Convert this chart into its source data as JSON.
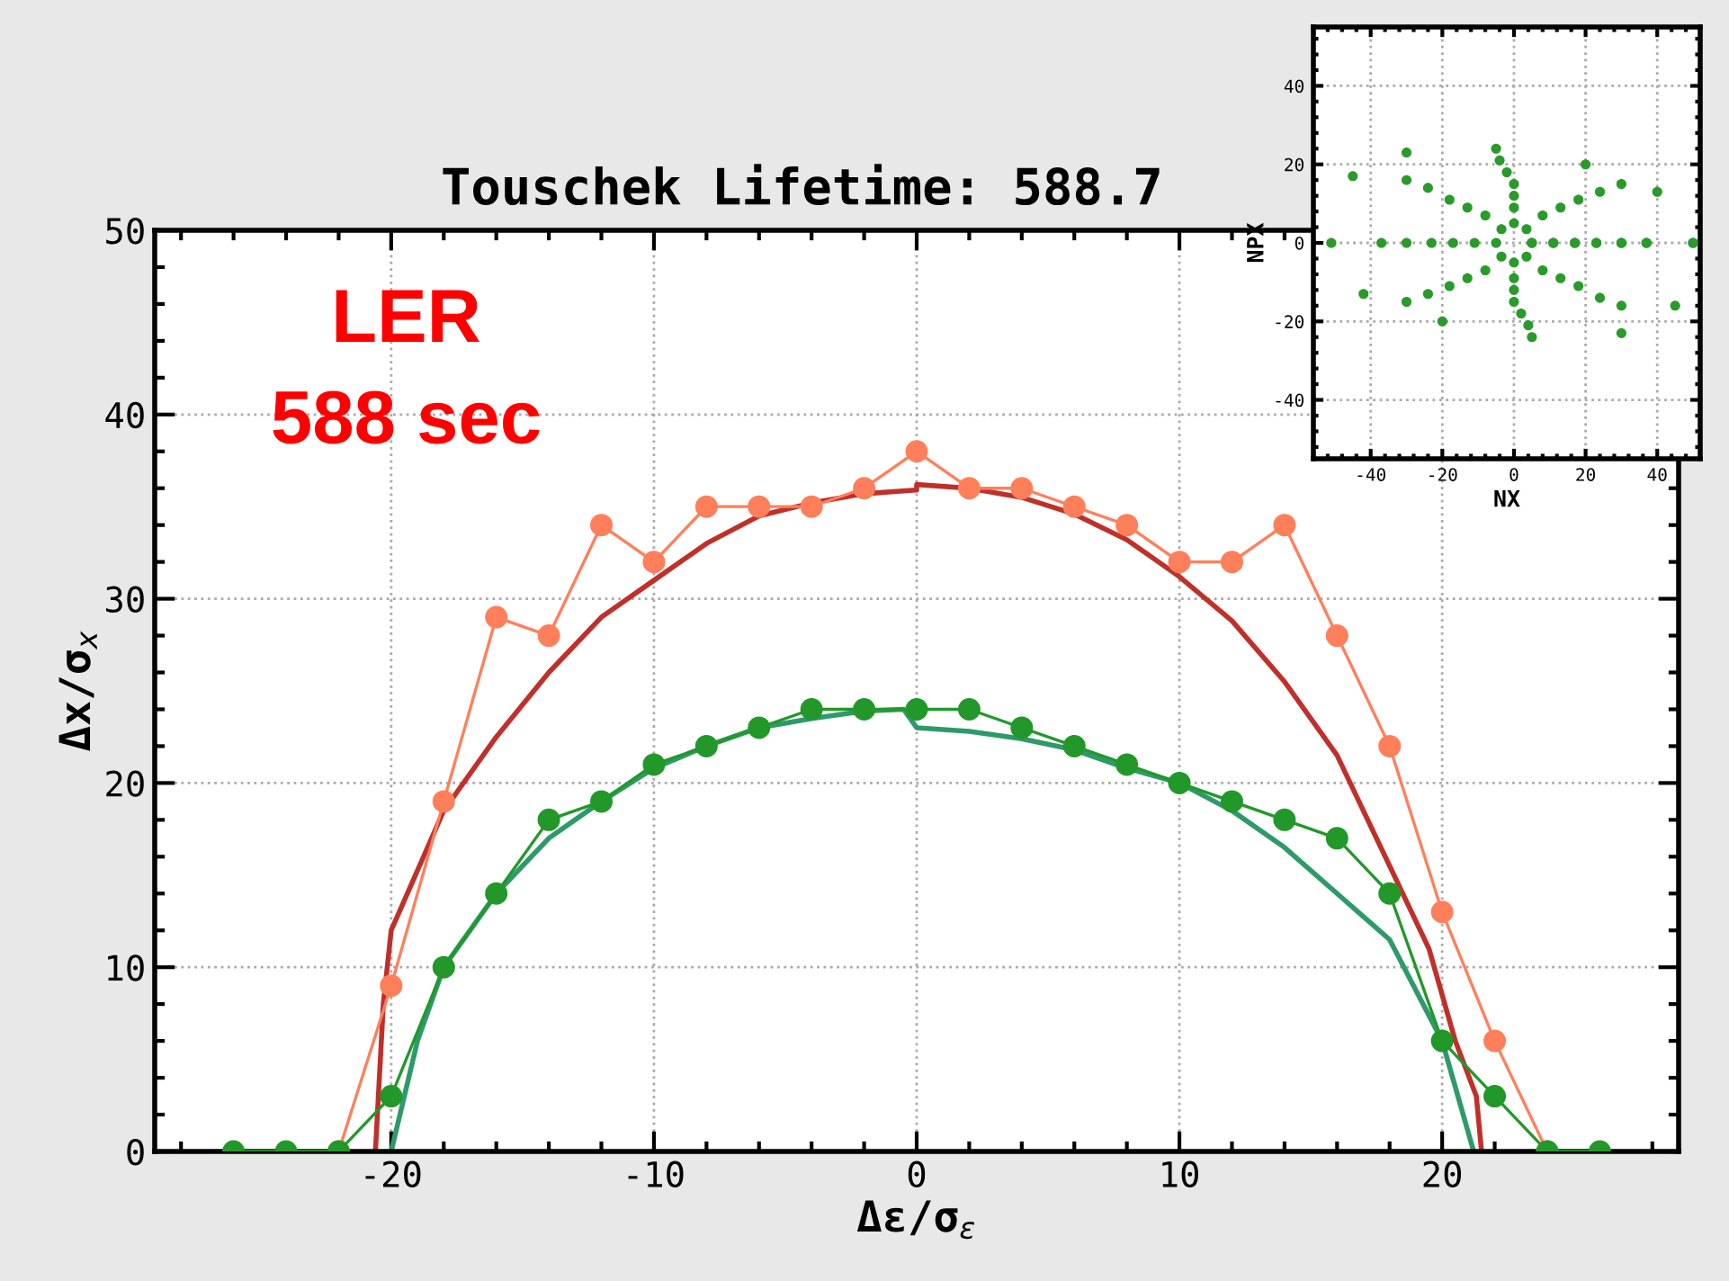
{
  "chart_data": [
    {
      "type": "line",
      "title": "Touschek Lifetime: 588.7",
      "xlabel": "Δε/σ$_{ε}$",
      "ylabel": "Δx/σ$_{x}$",
      "annotations": [
        "LER",
        "588 sec"
      ],
      "xlim": [
        -29,
        29
      ],
      "xticks": [
        -20,
        -10,
        0,
        10,
        20
      ],
      "ylim": [
        0,
        50
      ],
      "yticks": [
        0,
        10,
        20,
        30,
        40,
        50
      ],
      "grid": true,
      "series": [
        {
          "color": "#ff7f5a",
          "marker": "circle",
          "x": [
            -22,
            -20,
            -18,
            -16,
            -14,
            -12,
            -10,
            -8,
            -6,
            -4,
            -2,
            0,
            2,
            4,
            6,
            8,
            10,
            12,
            14,
            16,
            18,
            20,
            22,
            24
          ],
          "values": [
            0,
            9,
            19,
            29,
            28,
            34,
            32,
            35,
            35,
            35,
            36,
            38,
            36,
            36,
            35,
            34,
            32,
            32,
            34,
            28,
            22,
            13,
            6,
            0
          ]
        },
        {
          "color": "#c0302a",
          "marker": "none",
          "x": [
            -20.6,
            -20.3,
            -20,
            -18,
            -16,
            -14,
            -12,
            -10,
            -8,
            -6,
            -4,
            -2,
            0,
            0,
            2,
            4,
            6,
            8,
            10,
            12,
            14,
            16,
            18,
            19.5,
            20.5,
            21.3,
            21.5
          ],
          "values": [
            0,
            8,
            12,
            18.5,
            22.5,
            26,
            29,
            31,
            33,
            34.5,
            35.2,
            35.7,
            35.9,
            36.2,
            36,
            35.5,
            34.6,
            33.2,
            31.2,
            28.8,
            25.5,
            21.5,
            15.5,
            11,
            6,
            3,
            0
          ]
        },
        {
          "color": "#2e9a6a",
          "marker": "none",
          "x": [
            -20,
            -19,
            -18,
            -16,
            -14,
            -12,
            -10,
            -8,
            -6,
            -4,
            -2,
            -0.5,
            0,
            2,
            4,
            6,
            8,
            10,
            12,
            14,
            16,
            18,
            20,
            21.2
          ],
          "values": [
            0,
            6,
            10,
            14,
            17,
            19,
            20.8,
            22,
            23,
            23.5,
            23.9,
            24,
            23,
            22.8,
            22.4,
            21.8,
            20.8,
            20,
            18.5,
            16.5,
            14,
            11.5,
            6,
            0
          ]
        },
        {
          "color": "#22982a",
          "marker": "circle",
          "x": [
            -26,
            -24,
            -22,
            -20,
            -18,
            -16,
            -14,
            -12,
            -10,
            -8,
            -6,
            -4,
            -2,
            0,
            2,
            4,
            6,
            8,
            10,
            12,
            14,
            16,
            18,
            20,
            22,
            24,
            26
          ],
          "values": [
            0,
            0,
            0,
            3,
            10,
            14,
            18,
            19,
            21,
            22,
            23,
            24,
            24,
            24,
            24,
            23,
            22,
            21,
            20,
            19,
            18,
            17,
            14,
            6,
            3,
            0,
            0
          ]
        }
      ]
    },
    {
      "type": "scatter",
      "xlabel": "NX",
      "ylabel": "NPX",
      "xlim": [
        -56,
        52
      ],
      "xticks": [
        -40,
        -20,
        0,
        20,
        40
      ],
      "ylim": [
        -55,
        55
      ],
      "yticks": [
        -40,
        -20,
        0,
        20,
        40
      ],
      "grid": true,
      "series": [
        {
          "color": "#2a9a2a",
          "x": [
            5,
            3.5,
            0,
            -3.5,
            -5,
            -3.5,
            0,
            3.5,
            5
          ],
          "values": [
            0,
            3.5,
            5,
            3.5,
            0,
            -3.5,
            -5,
            -3.5,
            0
          ]
        },
        {
          "color": "#2a9a2a",
          "x": [
            11,
            8,
            0,
            -8,
            -11,
            -8,
            0,
            8,
            11
          ],
          "values": [
            0,
            7,
            9,
            7,
            0,
            -7,
            -9,
            -7,
            0
          ]
        },
        {
          "color": "#2a9a2a",
          "x": [
            17,
            13,
            0,
            -13,
            -17,
            -13,
            0,
            13,
            17
          ],
          "values": [
            0,
            9,
            12,
            9,
            0,
            -9,
            -12,
            -9,
            0
          ]
        },
        {
          "color": "#2a9a2a",
          "x": [
            23,
            18,
            0,
            -18,
            -23,
            -18,
            0,
            18,
            23
          ],
          "values": [
            0,
            11,
            15,
            11,
            0,
            -11,
            -15,
            -11,
            0
          ]
        },
        {
          "color": "#2a9a2a",
          "x": [
            30,
            24,
            -2,
            -24,
            -30,
            -24,
            2,
            24,
            30
          ],
          "values": [
            0,
            13,
            18,
            14,
            0,
            -13,
            -18,
            -14,
            0
          ]
        },
        {
          "color": "#2a9a2a",
          "x": [
            37,
            30,
            -4,
            -30,
            -37,
            -30,
            4,
            30,
            37
          ],
          "values": [
            0,
            15,
            21,
            16,
            0,
            -15,
            -21,
            -16,
            0
          ]
        },
        {
          "color": "#2a9a2a",
          "x": [
            50,
            40,
            20,
            -5,
            -30,
            -45,
            -51,
            -42,
            -20,
            5,
            30,
            45,
            50
          ],
          "values": [
            0,
            13,
            20,
            24,
            23,
            17,
            0,
            -13,
            -20,
            -24,
            -23,
            -16,
            0
          ]
        }
      ]
    }
  ]
}
